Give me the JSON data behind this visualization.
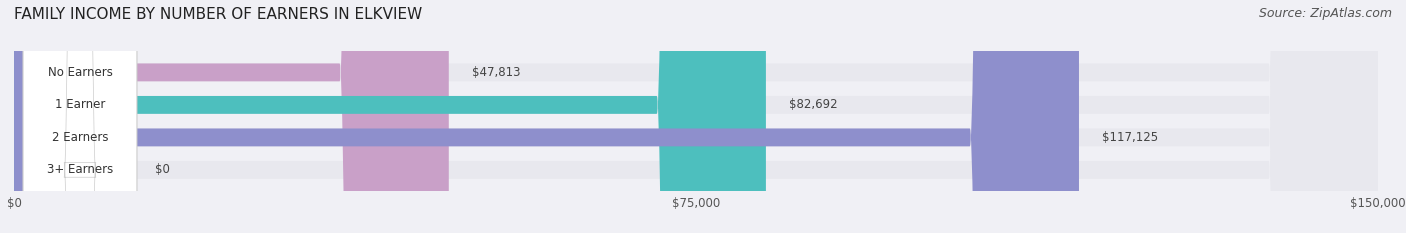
{
  "title": "FAMILY INCOME BY NUMBER OF EARNERS IN ELKVIEW",
  "source": "Source: ZipAtlas.com",
  "categories": [
    "No Earners",
    "1 Earner",
    "2 Earners",
    "3+ Earners"
  ],
  "values": [
    47813,
    82692,
    117125,
    0
  ],
  "value_labels": [
    "$47,813",
    "$82,692",
    "$117,125",
    "$0"
  ],
  "bar_colors": [
    "#c9a0c8",
    "#4dbfbe",
    "#8e8fcc",
    "#f4a0b8"
  ],
  "bar_bg_color": "#e8e8ee",
  "xmax": 150000,
  "xticklabels": [
    "$0",
    "$75,000",
    "$150,000"
  ],
  "background_color": "#f0f0f5",
  "label_bg_color": "#ffffff",
  "title_fontsize": 11,
  "source_fontsize": 9,
  "bar_height": 0.55,
  "figsize": [
    14.06,
    2.33
  ],
  "dpi": 100
}
